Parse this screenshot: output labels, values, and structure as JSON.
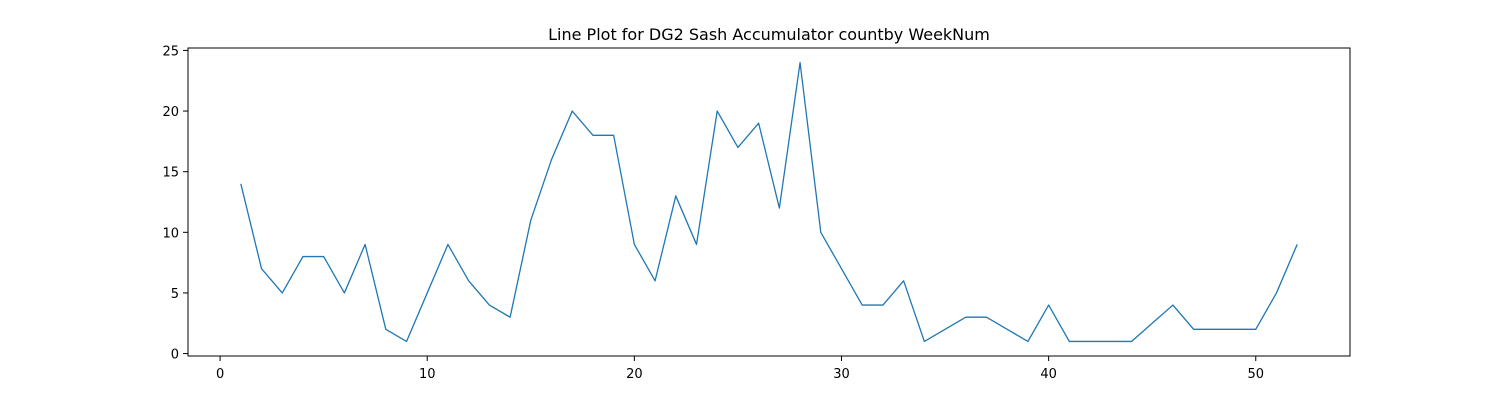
{
  "chart_data": {
    "type": "line",
    "title": "Line Plot for DG2 Sash Accumulator countby WeekNum",
    "xlabel": "",
    "ylabel": "",
    "xlim": [
      -1.55,
      54.55
    ],
    "ylim": [
      -0.2,
      25.2
    ],
    "xticks": [
      0,
      10,
      20,
      30,
      40,
      50
    ],
    "yticks": [
      0,
      5,
      10,
      15,
      20,
      25
    ],
    "grid": false,
    "legend": "none",
    "series": [
      {
        "color": "#1f77b4",
        "x": [
          1,
          2,
          3,
          4,
          5,
          6,
          7,
          8,
          9,
          10,
          11,
          12,
          13,
          14,
          15,
          16,
          17,
          18,
          19,
          20,
          21,
          22,
          23,
          24,
          25,
          26,
          27,
          28,
          29,
          30,
          31,
          32,
          33,
          34,
          35,
          36,
          37,
          38,
          39,
          40,
          41,
          42,
          43,
          44,
          45,
          46,
          47,
          48,
          49,
          50,
          51,
          52
        ],
        "y": [
          14,
          7,
          5,
          8,
          8,
          5,
          9,
          2,
          1,
          5,
          9,
          6,
          4,
          3,
          11,
          16,
          20,
          18,
          18,
          9,
          6,
          13,
          9,
          20,
          17,
          19,
          12,
          24,
          10,
          7,
          4,
          4,
          6,
          1,
          2,
          3,
          3,
          2,
          1,
          4,
          1,
          1,
          1,
          1,
          2.5,
          4,
          2,
          2,
          2,
          2,
          5,
          9
        ]
      }
    ]
  }
}
